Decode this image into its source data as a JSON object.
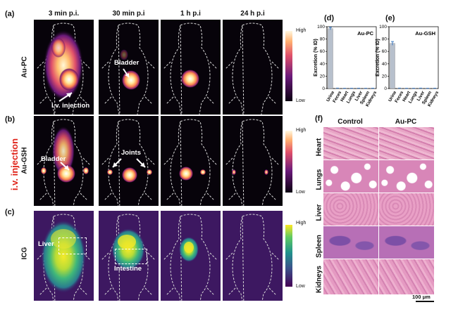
{
  "panels": {
    "a": "(a)",
    "b": "(b)",
    "c": "(c)",
    "d": "(d)",
    "e": "(e)",
    "f": "(f)"
  },
  "timepoints": [
    "3 min p.i.",
    "30 min p.i",
    "1 h p.i",
    "24 h p.i"
  ],
  "rows": {
    "a": "Au-PC",
    "b": "Au-GSH",
    "c": "ICG"
  },
  "side_label": "i.v. injection",
  "annotations": {
    "iv_injection": "i.v. injection",
    "bladder_a": "Bladder",
    "bladder_b": "Bladder",
    "joints": "Joints",
    "liver": "Liver",
    "intestine": "Intestine"
  },
  "colorbars": {
    "top_high": "High",
    "top_low": "Low",
    "mid_high": "High",
    "mid_low": "Low",
    "icg_high": "High",
    "icg_low": "Low"
  },
  "chart_data": [
    {
      "type": "bar",
      "panel": "d",
      "title": "Au-PC",
      "ylabel": "Excretion (% ID)",
      "ylim": [
        0,
        100
      ],
      "yticks": [
        0,
        20,
        40,
        60,
        80,
        100
      ],
      "categories": [
        "Urine",
        "Feces",
        "Heart",
        "Lungs",
        "Liver",
        "Spleen",
        "Kidneys"
      ],
      "values": [
        97,
        0.5,
        0.3,
        0.3,
        0.4,
        0.3,
        0.4
      ],
      "errors": [
        2,
        0.2,
        0.1,
        0.1,
        0.2,
        0.1,
        0.2
      ]
    },
    {
      "type": "bar",
      "panel": "e",
      "title": "Au-GSH",
      "ylabel": "Excretion (% ID)",
      "ylim": [
        0,
        100
      ],
      "yticks": [
        0,
        20,
        40,
        60,
        80,
        100
      ],
      "categories": [
        "Urine",
        "Feces",
        "Heart",
        "Lungs",
        "Liver",
        "Spleen",
        "Kidneys"
      ],
      "values": [
        73,
        0.5,
        0.3,
        0.3,
        0.5,
        0.3,
        0.4
      ],
      "errors": [
        3,
        0.2,
        0.1,
        0.1,
        0.2,
        0.1,
        0.2
      ]
    }
  ],
  "histology": {
    "columns": [
      "Control",
      "Au-PC"
    ],
    "rows": [
      "Heart",
      "Lungs",
      "Liver",
      "Spleen",
      "Kidneys"
    ],
    "scale_bar": "100 μm"
  },
  "colors": {
    "bar_fill": "#b7c0cc",
    "error": "#3a78c2",
    "he_pink": "#e59ac2",
    "he_purple": "#9a5fb0"
  }
}
